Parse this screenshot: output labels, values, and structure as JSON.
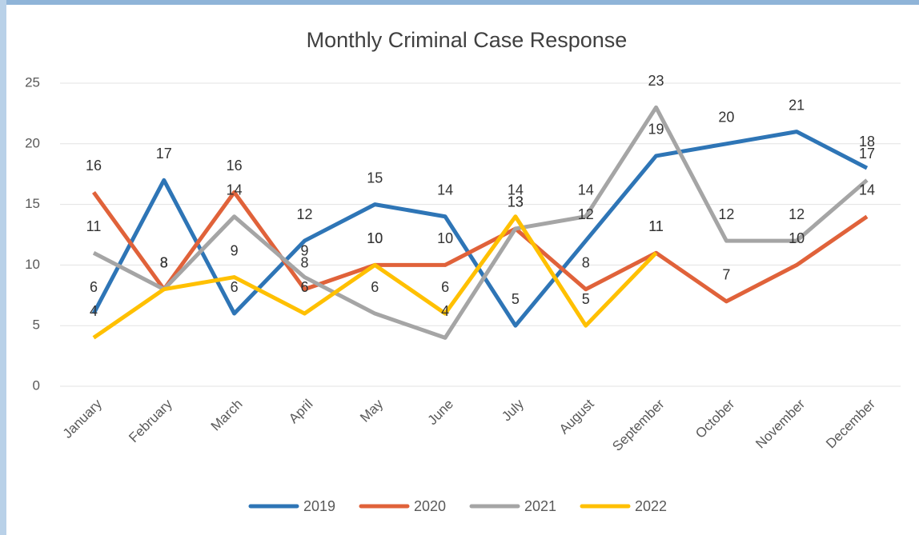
{
  "chart_data": {
    "type": "line",
    "title": "Monthly Criminal Case Response",
    "categories": [
      "January",
      "February",
      "March",
      "April",
      "May",
      "June",
      "July",
      "August",
      "September",
      "October",
      "November",
      "December"
    ],
    "series": [
      {
        "name": "2019",
        "color": "#2e75b6",
        "values": [
          6,
          17,
          6,
          12,
          15,
          14,
          5,
          12,
          19,
          20,
          21,
          18
        ]
      },
      {
        "name": "2020",
        "color": "#e0623a",
        "values": [
          16,
          8,
          16,
          8,
          10,
          10,
          13,
          8,
          11,
          7,
          10,
          14
        ]
      },
      {
        "name": "2021",
        "color": "#a5a5a5",
        "values": [
          11,
          8,
          14,
          9,
          6,
          4,
          13,
          14,
          23,
          12,
          12,
          17
        ]
      },
      {
        "name": "2022",
        "color": "#ffc000",
        "values": [
          4,
          8,
          9,
          6,
          10,
          6,
          14,
          5,
          11,
          null,
          null,
          null
        ]
      }
    ],
    "ylim": [
      0,
      25
    ],
    "yticks": [
      0,
      5,
      10,
      15,
      20,
      25
    ],
    "grid": true,
    "legend": "bottom"
  }
}
